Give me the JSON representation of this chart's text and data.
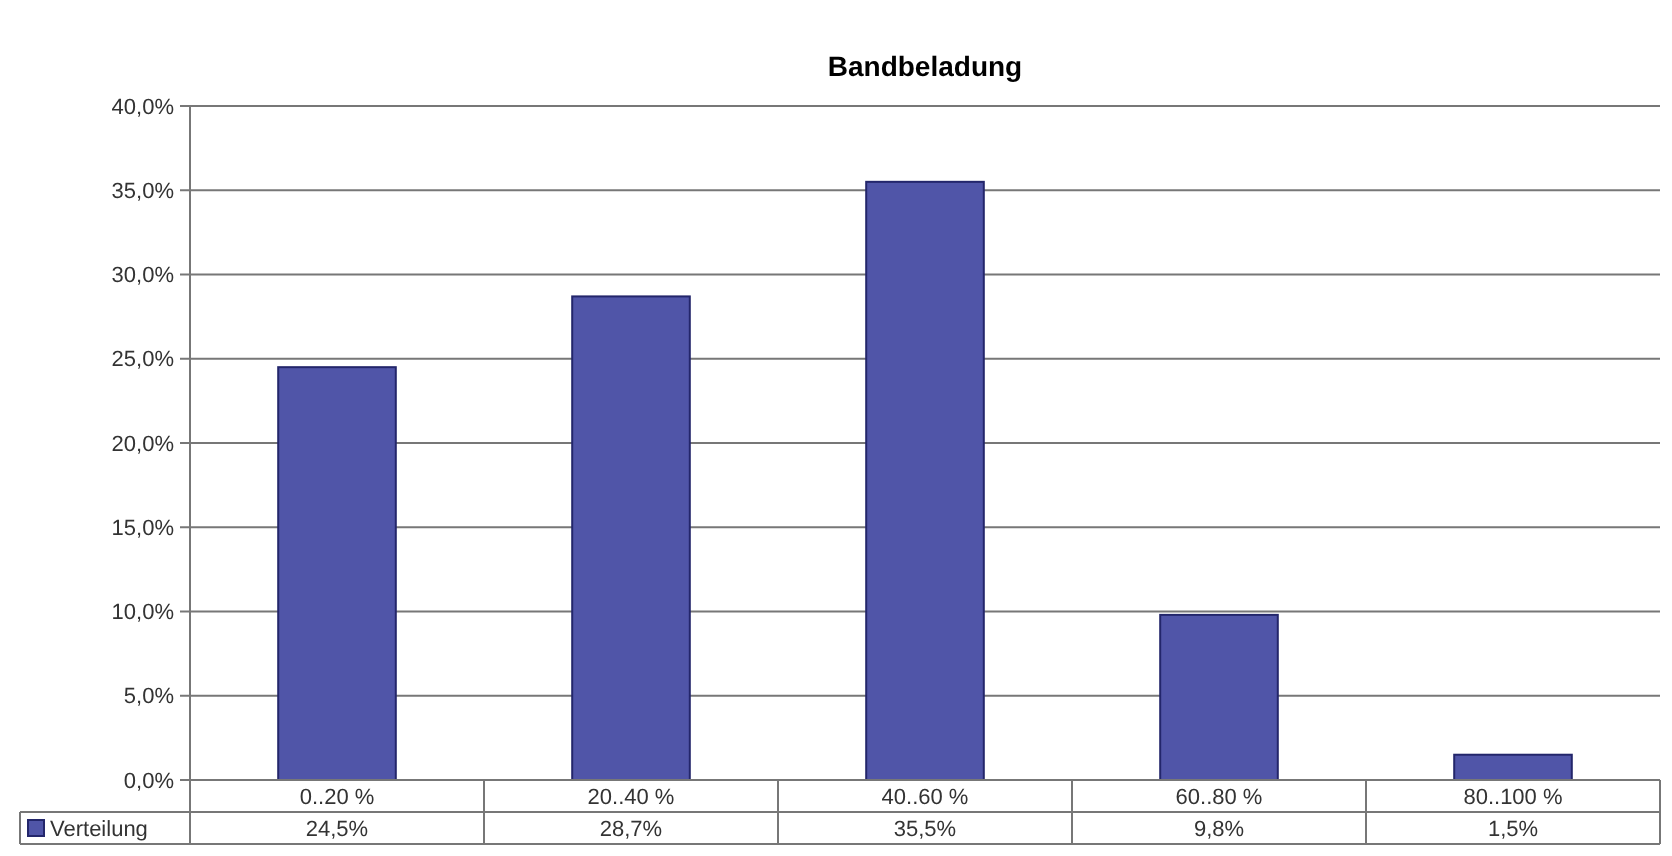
{
  "chart_data": {
    "type": "bar",
    "title": "Bandbeladung",
    "categories": [
      "0..20 %",
      "20..40 %",
      "40..60 %",
      "60..80 %",
      "80..100 %"
    ],
    "series": [
      {
        "name": "Verteilung",
        "color": "#5055a8",
        "values": [
          24.5,
          28.7,
          35.5,
          9.8,
          1.5
        ],
        "value_labels": [
          "24,5%",
          "28,7%",
          "35,5%",
          "9,8%",
          "1,5%"
        ]
      }
    ],
    "ylim": [
      0,
      40
    ],
    "yticks": [
      {
        "value": 0,
        "label": "0,0%"
      },
      {
        "value": 5,
        "label": "5,0%"
      },
      {
        "value": 10,
        "label": "10,0%"
      },
      {
        "value": 15,
        "label": "15,0%"
      },
      {
        "value": 20,
        "label": "20,0%"
      },
      {
        "value": 25,
        "label": "25,0%"
      },
      {
        "value": 30,
        "label": "30,0%"
      },
      {
        "value": 35,
        "label": "35,0%"
      },
      {
        "value": 40,
        "label": "40,0%"
      }
    ],
    "grid": "y",
    "legend": "bottom left"
  }
}
